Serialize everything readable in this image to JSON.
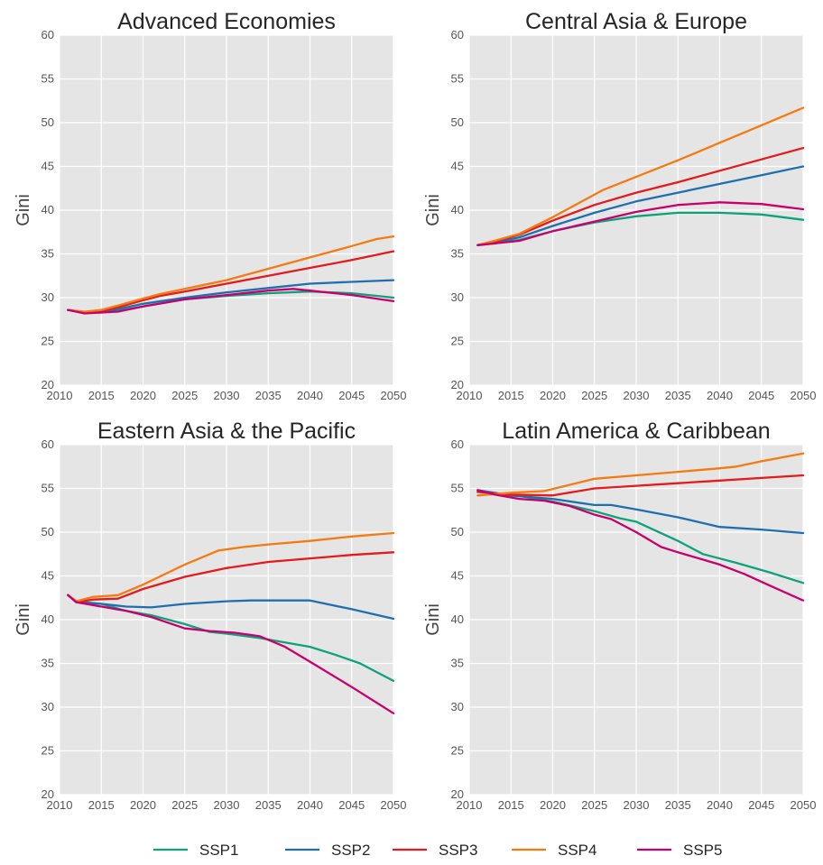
{
  "legend": {
    "placement": "bottom",
    "items": [
      {
        "name": "SSP1",
        "color": "#0ea27a"
      },
      {
        "name": "SSP2",
        "color": "#1f6fb0"
      },
      {
        "name": "SSP3",
        "color": "#e41a1c"
      },
      {
        "name": "SSP4",
        "color": "#f57a0f"
      },
      {
        "name": "SSP5",
        "color": "#c8006e"
      }
    ]
  },
  "chart_data": [
    {
      "type": "line",
      "title": "Advanced Economies",
      "xlabel": "",
      "ylabel": "Gini",
      "xlim": [
        2010,
        2050
      ],
      "ylim": [
        20,
        60
      ],
      "xticks": [
        "2010",
        "2015",
        "2020",
        "2025",
        "2030",
        "2035",
        "2040",
        "2045",
        "2050"
      ],
      "yticks": [
        "20",
        "25",
        "30",
        "35",
        "40",
        "45",
        "50",
        "55",
        "60"
      ],
      "grid": true,
      "series": [
        {
          "name": "SSP1",
          "color": "#0ea27a",
          "x": [
            2011,
            2013,
            2015,
            2017,
            2020,
            2025,
            2030,
            2035,
            2040,
            2045,
            2050
          ],
          "y": [
            28.6,
            28.3,
            28.3,
            28.5,
            29.0,
            29.8,
            30.2,
            30.5,
            30.7,
            30.5,
            30.0
          ]
        },
        {
          "name": "SSP2",
          "color": "#1f6fb0",
          "x": [
            2011,
            2013,
            2015,
            2017,
            2020,
            2025,
            2030,
            2035,
            2040,
            2045,
            2050
          ],
          "y": [
            28.6,
            28.3,
            28.4,
            28.7,
            29.3,
            30.0,
            30.6,
            31.1,
            31.6,
            31.8,
            32.0
          ]
        },
        {
          "name": "SSP3",
          "color": "#e41a1c",
          "x": [
            2011,
            2013,
            2015,
            2017,
            2020,
            2022,
            2025,
            2030,
            2035,
            2040,
            2045,
            2050
          ],
          "y": [
            28.6,
            28.3,
            28.5,
            28.9,
            29.7,
            30.2,
            30.7,
            31.6,
            32.5,
            33.4,
            34.3,
            35.3
          ]
        },
        {
          "name": "SSP4",
          "color": "#f57a0f",
          "x": [
            2011,
            2013,
            2015,
            2017,
            2020,
            2022,
            2025,
            2030,
            2035,
            2040,
            2045,
            2048,
            2050
          ],
          "y": [
            28.6,
            28.4,
            28.6,
            29.1,
            29.9,
            30.4,
            31.0,
            32.0,
            33.3,
            34.6,
            35.9,
            36.7,
            37.0
          ]
        },
        {
          "name": "SSP5",
          "color": "#c8006e",
          "x": [
            2011,
            2013,
            2015,
            2017,
            2020,
            2025,
            2030,
            2035,
            2038,
            2040,
            2045,
            2050
          ],
          "y": [
            28.6,
            28.2,
            28.3,
            28.4,
            29.0,
            29.8,
            30.3,
            30.8,
            31.0,
            30.8,
            30.3,
            29.6
          ]
        }
      ]
    },
    {
      "type": "line",
      "title": "Central Asia & Europe",
      "xlabel": "",
      "ylabel": "Gini",
      "xlim": [
        2010,
        2050
      ],
      "ylim": [
        20,
        60
      ],
      "xticks": [
        "2010",
        "2015",
        "2020",
        "2025",
        "2030",
        "2035",
        "2040",
        "2045",
        "2050"
      ],
      "yticks": [
        "20",
        "25",
        "30",
        "35",
        "40",
        "45",
        "50",
        "55",
        "60"
      ],
      "grid": true,
      "series": [
        {
          "name": "SSP1",
          "color": "#0ea27a",
          "x": [
            2011,
            2013,
            2016,
            2020,
            2025,
            2030,
            2035,
            2040,
            2045,
            2050
          ],
          "y": [
            36.0,
            36.2,
            36.6,
            37.6,
            38.6,
            39.3,
            39.7,
            39.7,
            39.5,
            38.9
          ]
        },
        {
          "name": "SSP2",
          "color": "#1f6fb0",
          "x": [
            2011,
            2013,
            2016,
            2020,
            2025,
            2030,
            2035,
            2040,
            2045,
            2050
          ],
          "y": [
            36.0,
            36.3,
            36.9,
            38.2,
            39.7,
            41.0,
            42.0,
            43.0,
            44.0,
            45.0
          ]
        },
        {
          "name": "SSP3",
          "color": "#e41a1c",
          "x": [
            2011,
            2013,
            2016,
            2020,
            2025,
            2030,
            2035,
            2040,
            2045,
            2050
          ],
          "y": [
            36.0,
            36.4,
            37.2,
            38.8,
            40.6,
            42.0,
            43.2,
            44.5,
            45.8,
            47.1
          ]
        },
        {
          "name": "SSP4",
          "color": "#f57a0f",
          "x": [
            2011,
            2013,
            2016,
            2020,
            2026,
            2030,
            2035,
            2040,
            2045,
            2050
          ],
          "y": [
            36.0,
            36.5,
            37.3,
            39.2,
            42.3,
            43.8,
            45.7,
            47.7,
            49.7,
            51.7
          ]
        },
        {
          "name": "SSP5",
          "color": "#c8006e",
          "x": [
            2011,
            2013,
            2016,
            2020,
            2025,
            2030,
            2035,
            2040,
            2045,
            2050
          ],
          "y": [
            36.0,
            36.2,
            36.5,
            37.6,
            38.7,
            39.8,
            40.6,
            40.9,
            40.7,
            40.1
          ]
        }
      ]
    },
    {
      "type": "line",
      "title": "Eastern Asia & the Pacific",
      "xlabel": "",
      "ylabel": "Gini",
      "xlim": [
        2010,
        2050
      ],
      "ylim": [
        20,
        60
      ],
      "xticks": [
        "2010",
        "2015",
        "2020",
        "2025",
        "2030",
        "2035",
        "2040",
        "2045",
        "2050"
      ],
      "yticks": [
        "20",
        "25",
        "30",
        "35",
        "40",
        "45",
        "50",
        "55",
        "60"
      ],
      "grid": true,
      "series": [
        {
          "name": "SSP1",
          "color": "#0ea27a",
          "x": [
            2011,
            2012,
            2015,
            2018,
            2021,
            2025,
            2028,
            2030,
            2034,
            2037,
            2040,
            2043,
            2046,
            2050
          ],
          "y": [
            42.8,
            42.1,
            41.8,
            41.0,
            40.5,
            39.5,
            38.6,
            38.4,
            37.9,
            37.4,
            36.9,
            36.0,
            35.0,
            33.0
          ]
        },
        {
          "name": "SSP2",
          "color": "#1f6fb0",
          "x": [
            2011,
            2012,
            2015,
            2018,
            2021,
            2025,
            2030,
            2033,
            2040,
            2045,
            2050
          ],
          "y": [
            42.8,
            42.0,
            41.8,
            41.5,
            41.4,
            41.8,
            42.1,
            42.2,
            42.2,
            41.2,
            40.1
          ]
        },
        {
          "name": "SSP3",
          "color": "#e41a1c",
          "x": [
            2011,
            2012,
            2014,
            2017,
            2020,
            2025,
            2030,
            2035,
            2040,
            2045,
            2050
          ],
          "y": [
            42.8,
            42.0,
            42.3,
            42.4,
            43.5,
            44.9,
            45.9,
            46.6,
            47.0,
            47.4,
            47.7
          ]
        },
        {
          "name": "SSP4",
          "color": "#f57a0f",
          "x": [
            2011,
            2012,
            2014,
            2017,
            2020,
            2025,
            2029,
            2032,
            2035,
            2040,
            2045,
            2050
          ],
          "y": [
            42.8,
            42.1,
            42.6,
            42.8,
            44.0,
            46.3,
            47.9,
            48.3,
            48.6,
            49.0,
            49.5,
            49.9
          ]
        },
        {
          "name": "SSP5",
          "color": "#c8006e",
          "x": [
            2011,
            2012,
            2015,
            2018,
            2021,
            2025,
            2028,
            2031,
            2034,
            2037,
            2040,
            2045,
            2050
          ],
          "y": [
            42.8,
            42.0,
            41.5,
            41.0,
            40.3,
            39.0,
            38.7,
            38.5,
            38.1,
            36.9,
            35.2,
            32.3,
            29.3
          ]
        }
      ]
    },
    {
      "type": "line",
      "title": "Latin America & Caribbean",
      "xlabel": "",
      "ylabel": "Gini",
      "xlim": [
        2010,
        2050
      ],
      "ylim": [
        20,
        60
      ],
      "xticks": [
        "2010",
        "2015",
        "2020",
        "2025",
        "2030",
        "2035",
        "2040",
        "2045",
        "2050"
      ],
      "yticks": [
        "20",
        "25",
        "30",
        "35",
        "40",
        "45",
        "50",
        "55",
        "60"
      ],
      "grid": true,
      "series": [
        {
          "name": "SSP1",
          "color": "#0ea27a",
          "x": [
            2011,
            2015,
            2020,
            2025,
            2028,
            2030,
            2035,
            2038,
            2042,
            2046,
            2050
          ],
          "y": [
            54.6,
            54.3,
            53.5,
            52.4,
            51.6,
            51.2,
            49.0,
            47.5,
            46.5,
            45.4,
            44.2
          ]
        },
        {
          "name": "SSP2",
          "color": "#1f6fb0",
          "x": [
            2011,
            2015,
            2020,
            2025,
            2027,
            2030,
            2035,
            2040,
            2045,
            2050
          ],
          "y": [
            54.8,
            54.2,
            53.8,
            53.1,
            53.1,
            52.6,
            51.7,
            50.6,
            50.3,
            49.9
          ]
        },
        {
          "name": "SSP3",
          "color": "#e41a1c",
          "x": [
            2011,
            2015,
            2020,
            2025,
            2030,
            2035,
            2040,
            2045,
            2050
          ],
          "y": [
            54.6,
            54.3,
            54.2,
            55.0,
            55.3,
            55.6,
            55.9,
            56.2,
            56.5
          ]
        },
        {
          "name": "SSP4",
          "color": "#f57a0f",
          "x": [
            2011,
            2015,
            2019,
            2022,
            2025,
            2030,
            2035,
            2040,
            2042,
            2045,
            2050
          ],
          "y": [
            54.2,
            54.5,
            54.7,
            55.4,
            56.1,
            56.5,
            56.9,
            57.3,
            57.5,
            58.1,
            59.0
          ]
        },
        {
          "name": "SSP5",
          "color": "#c8006e",
          "x": [
            2011,
            2013,
            2016,
            2019,
            2022,
            2025,
            2027,
            2030,
            2033,
            2035,
            2040,
            2043,
            2046,
            2050
          ],
          "y": [
            54.8,
            54.3,
            53.8,
            53.6,
            53.0,
            52.0,
            51.5,
            50.0,
            48.3,
            47.7,
            46.3,
            45.2,
            43.9,
            42.2
          ]
        }
      ]
    }
  ]
}
